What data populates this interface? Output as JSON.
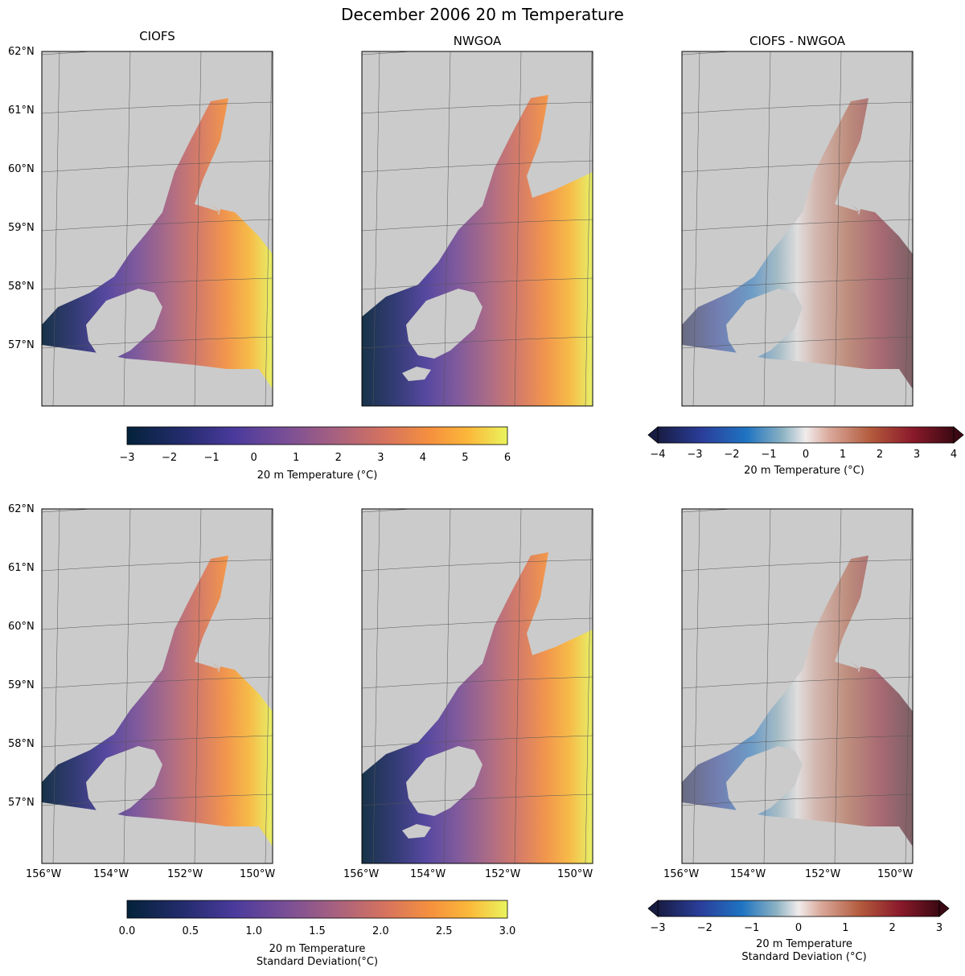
{
  "figure": {
    "title": "December 2006 20 m Temperature"
  },
  "panels": {
    "top_left": {
      "title": "CIOFS"
    },
    "top_center": {
      "title": "NWGOA"
    },
    "top_right": {
      "title": "CIOFS - NWGOA"
    },
    "bottom_left": {
      "title": ""
    },
    "bottom_center": {
      "title": ""
    },
    "bottom_right": {
      "title": ""
    }
  },
  "axes": {
    "lat_ticks": [
      "62°N",
      "61°N",
      "60°N",
      "59°N",
      "58°N",
      "57°N"
    ],
    "lon_ticks": [
      "156°W",
      "154°W",
      "152°W",
      "150°W"
    ]
  },
  "colorbars": {
    "temp": {
      "label": "20 m Temperature (°C)",
      "ticks": [
        "−3",
        "−2",
        "−1",
        "0",
        "1",
        "2",
        "3",
        "4",
        "5",
        "6"
      ],
      "range": [
        -3,
        6
      ],
      "colormap": "thermal"
    },
    "temp_diff": {
      "label": "20 m Temperature (°C)",
      "ticks": [
        "−4",
        "−3",
        "−2",
        "−1",
        "0",
        "1",
        "2",
        "3",
        "4"
      ],
      "range": [
        -4,
        4
      ],
      "colormap": "balance",
      "extend": "both"
    },
    "std": {
      "label_line1": "20 m Temperature",
      "label_line2": "Standard Deviation(°C)",
      "ticks": [
        "0.0",
        "0.5",
        "1.0",
        "1.5",
        "2.0",
        "2.5",
        "3.0"
      ],
      "range": [
        0,
        3
      ],
      "colormap": "thermal"
    },
    "std_diff": {
      "label_line1": "20 m Temperature",
      "label_line2": "Standard Deviation (°C)",
      "ticks": [
        "−3",
        "−2",
        "−1",
        "0",
        "1",
        "2",
        "3"
      ],
      "range": [
        -3,
        3
      ],
      "colormap": "balance",
      "extend": "both"
    }
  },
  "colors": {
    "land": "#cbcbcb",
    "gridline": "#555555"
  }
}
